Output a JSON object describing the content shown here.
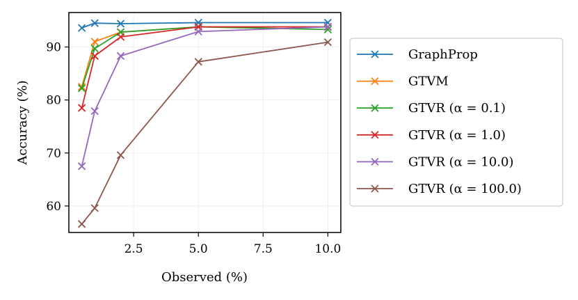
{
  "chart_data": {
    "type": "line",
    "xlabel": "Observed (%)",
    "ylabel": "Accuracy (%)",
    "xlim": [
      0.0,
      10.5
    ],
    "ylim": [
      55,
      96.5
    ],
    "xticks": [
      "2.5",
      "5.0",
      "7.5",
      "10.0"
    ],
    "xtick_values": [
      2.5,
      5.0,
      7.5,
      10.0
    ],
    "yticks": [
      "60",
      "70",
      "80",
      "90"
    ],
    "ytick_values": [
      60,
      70,
      80,
      90
    ],
    "grid": true,
    "legend_position": "outside-right",
    "marker": "x",
    "x": [
      0.5,
      1.0,
      2.0,
      5.0,
      10.0
    ],
    "series": [
      {
        "name": "GraphProp",
        "color": "#1f77b4",
        "values": [
          93.6,
          94.5,
          94.4,
          94.6,
          94.6
        ]
      },
      {
        "name": "GTVM",
        "color": "#ff7f0e",
        "values": [
          82.5,
          91.0,
          92.8,
          93.8,
          93.8
        ]
      },
      {
        "name": "GTVR (α = 0.1)",
        "color": "#2ca02c",
        "values": [
          82.2,
          89.7,
          92.8,
          93.8,
          93.3
        ]
      },
      {
        "name": "GTVR (α = 1.0)",
        "color": "#d62728",
        "values": [
          78.5,
          88.3,
          91.9,
          93.8,
          93.8
        ]
      },
      {
        "name": "GTVR (α = 10.0)",
        "color": "#9467bd",
        "values": [
          67.5,
          77.9,
          88.3,
          92.9,
          93.8
        ]
      },
      {
        "name": "GTVR (α = 100.0)",
        "color": "#8c564b",
        "values": [
          56.6,
          59.6,
          69.6,
          87.2,
          90.9
        ]
      }
    ]
  }
}
